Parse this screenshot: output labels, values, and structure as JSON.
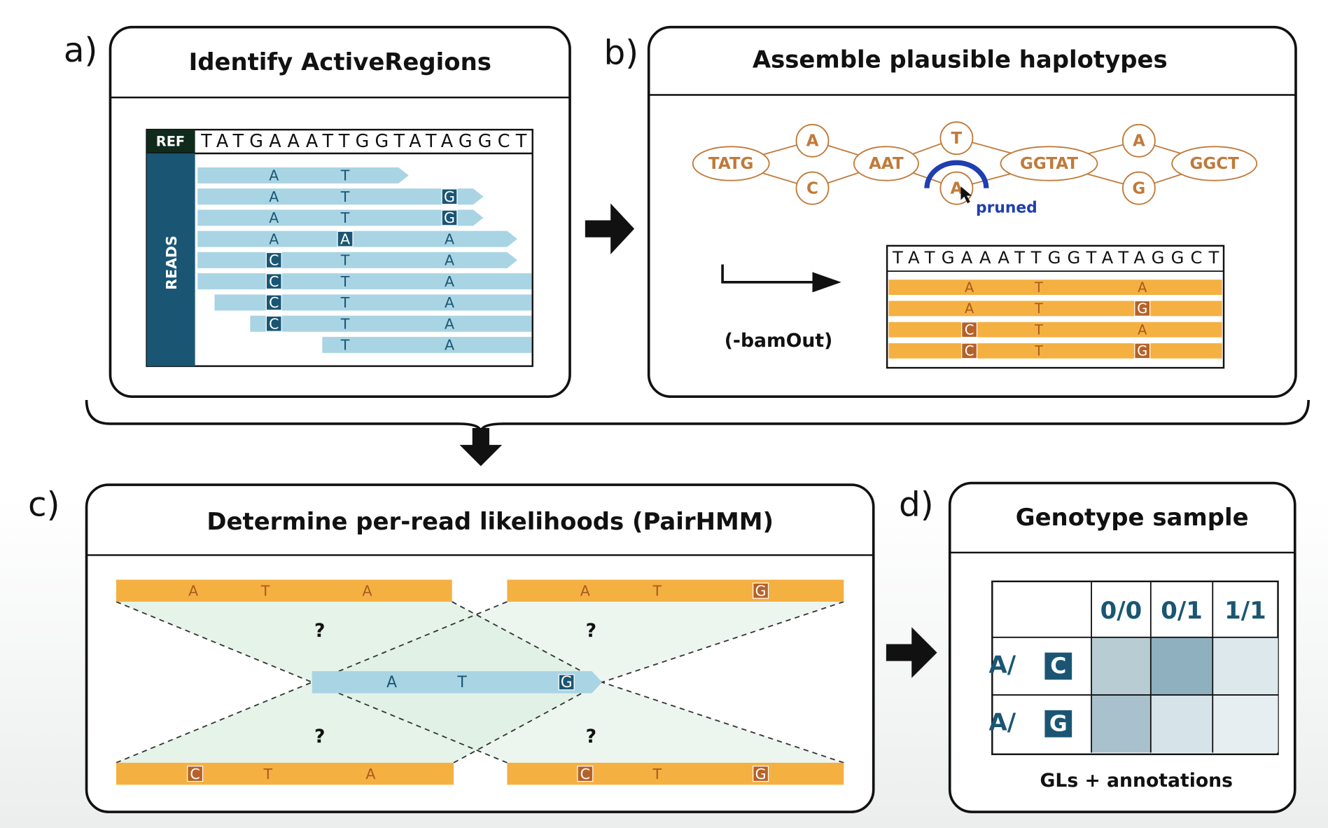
{
  "panel_a": {
    "label": "a)",
    "title": "Identify ActiveRegions",
    "ref_label": "REF",
    "ref_sequence": "TATGAAATTGGTATAGGCT",
    "reads_label": "READS",
    "reads": [
      {
        "bases": [
          "A",
          "T",
          null
        ],
        "boxed": [
          false,
          false,
          false
        ]
      },
      {
        "bases": [
          "A",
          "T",
          "G"
        ],
        "boxed": [
          false,
          false,
          true
        ]
      },
      {
        "bases": [
          "A",
          "T",
          "G"
        ],
        "boxed": [
          false,
          false,
          true
        ]
      },
      {
        "bases": [
          "A",
          "A",
          "A"
        ],
        "boxed": [
          false,
          true,
          false
        ]
      },
      {
        "bases": [
          "C",
          "T",
          "A"
        ],
        "boxed": [
          true,
          false,
          false
        ]
      },
      {
        "bases": [
          "C",
          "T",
          "A"
        ],
        "boxed": [
          true,
          false,
          false
        ]
      },
      {
        "bases": [
          "C",
          "T",
          "A"
        ],
        "boxed": [
          true,
          false,
          false
        ]
      },
      {
        "bases": [
          "C",
          "T",
          "A"
        ],
        "boxed": [
          true,
          false,
          false
        ]
      },
      {
        "bases": [
          null,
          "T",
          "A"
        ],
        "boxed": [
          false,
          false,
          false
        ]
      }
    ]
  },
  "panel_b": {
    "label": "b)",
    "title": "Assemble plausible haplotypes",
    "graph_nodes": [
      "TATG",
      "A",
      "C",
      "AAT",
      "T",
      "A",
      "GGTAT",
      "A",
      "G",
      "GGCT"
    ],
    "pruned_label": "pruned",
    "output_label": "(-bamOut)",
    "haplotype_ref": "TATGAAATTGGTATAGGCT",
    "haplotypes": [
      {
        "bases": [
          "A",
          "T",
          "A"
        ],
        "boxed": [
          false,
          false,
          false
        ]
      },
      {
        "bases": [
          "A",
          "T",
          "G"
        ],
        "boxed": [
          false,
          false,
          true
        ]
      },
      {
        "bases": [
          "C",
          "T",
          "A"
        ],
        "boxed": [
          true,
          false,
          false
        ]
      },
      {
        "bases": [
          "C",
          "T",
          "G"
        ],
        "boxed": [
          true,
          false,
          true
        ]
      }
    ]
  },
  "panel_c": {
    "label": "c)",
    "title": "Determine per-read likelihoods (PairHMM)",
    "haplotypes": [
      {
        "bases": [
          "A",
          "T",
          "A"
        ],
        "boxed": [
          false,
          false,
          false
        ]
      },
      {
        "bases": [
          "A",
          "T",
          "G"
        ],
        "boxed": [
          false,
          false,
          true
        ]
      },
      {
        "bases": [
          "C",
          "T",
          "A"
        ],
        "boxed": [
          true,
          false,
          false
        ]
      },
      {
        "bases": [
          "C",
          "T",
          "G"
        ],
        "boxed": [
          true,
          false,
          true
        ]
      }
    ],
    "read": {
      "bases": [
        "A",
        "T",
        "G"
      ],
      "boxed": [
        false,
        false,
        true
      ]
    },
    "question_marks": [
      "?",
      "?",
      "?",
      "?"
    ]
  },
  "panel_d": {
    "label": "d)",
    "title": "Genotype sample",
    "columns": [
      "0/0",
      "0/1",
      "1/1"
    ],
    "rows": [
      {
        "prefix": "A/",
        "allele": "C"
      },
      {
        "prefix": "A/",
        "allele": "G"
      }
    ],
    "footer": "GLs + annotations"
  }
}
